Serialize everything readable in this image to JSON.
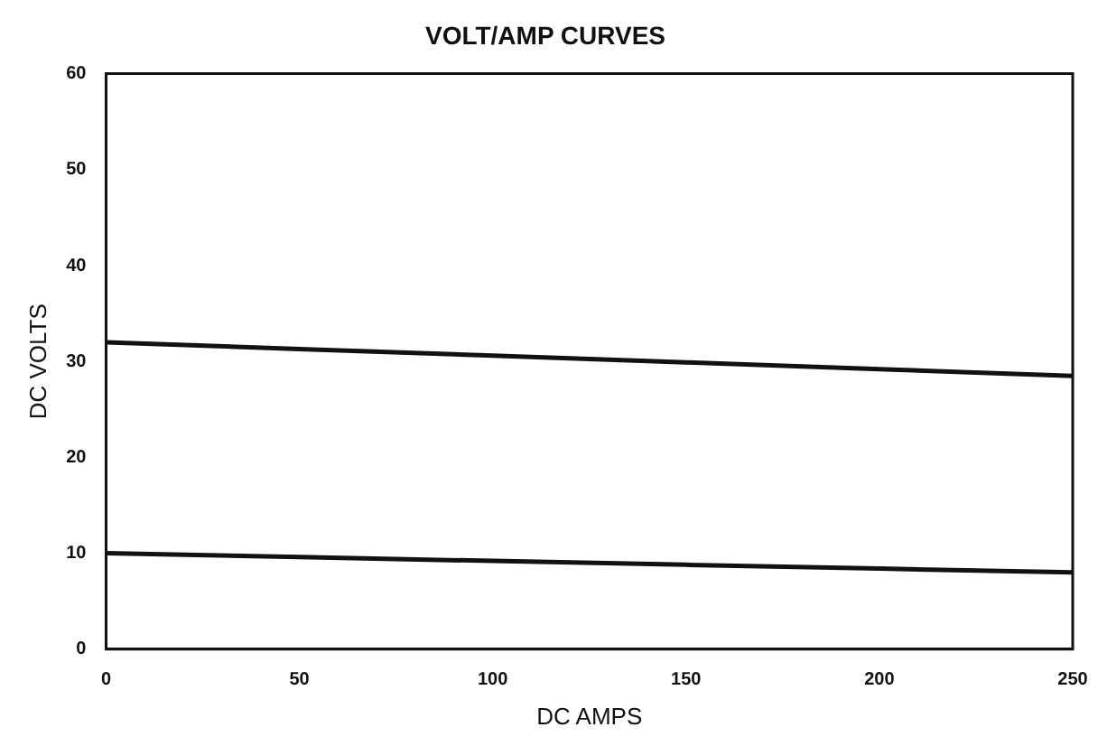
{
  "chart_data": {
    "type": "line",
    "title": "VOLT/AMP CURVES",
    "xlabel": "DC AMPS",
    "ylabel": "DC VOLTS",
    "x": [
      0,
      50,
      100,
      150,
      200,
      250
    ],
    "series": [
      {
        "color": "#111111",
        "values": [
          32,
          31.3,
          30.6,
          29.9,
          29.2,
          28.5
        ]
      },
      {
        "color": "#111111",
        "values": [
          10,
          9.6,
          9.2,
          8.8,
          8.4,
          8
        ]
      }
    ],
    "xlim": [
      0,
      250
    ],
    "xticks": [
      0,
      50,
      100,
      150,
      200,
      250
    ],
    "ylim": [
      0,
      60
    ],
    "yticks": [
      0,
      10,
      20,
      30,
      40,
      50,
      60
    ],
    "grid": false,
    "legend": false,
    "marker": "none",
    "line_style": "solid"
  }
}
